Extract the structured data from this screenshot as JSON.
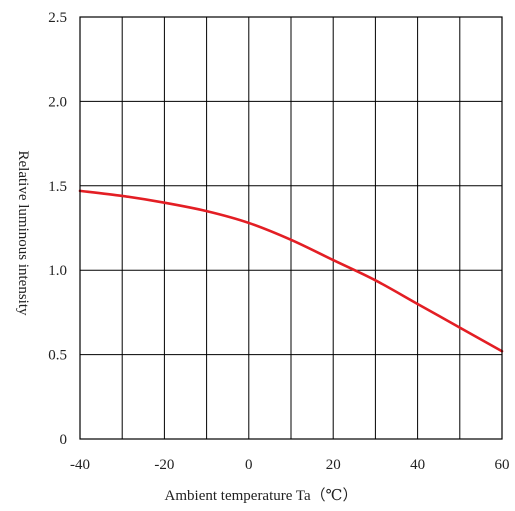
{
  "chart_data": {
    "type": "line",
    "title": "",
    "xlabel": "Ambient temperature Ta（℃）",
    "ylabel": "Relative luminous intensity",
    "xlim": [
      -40,
      60
    ],
    "ylim": [
      0,
      2.5
    ],
    "x_ticks": [
      -40,
      -30,
      -20,
      -10,
      0,
      10,
      20,
      30,
      40,
      50,
      60
    ],
    "x_tick_labels": [
      "-40",
      "",
      "-20",
      "",
      "0",
      "",
      "20",
      "",
      "40",
      "",
      "60"
    ],
    "y_ticks": [
      0,
      0.5,
      1.0,
      1.5,
      2.0,
      2.5
    ],
    "y_tick_labels": [
      "0",
      "0.5",
      "1.0",
      "1.5",
      "2.0",
      "2.5"
    ],
    "grid": true,
    "colors": {
      "line": "#e31e24",
      "grid": "#000000",
      "frame": "#000000"
    },
    "series": [
      {
        "x": [
          -40,
          -30,
          -20,
          -10,
          0,
          10,
          20,
          30,
          40,
          50,
          60
        ],
        "y": [
          1.47,
          1.44,
          1.4,
          1.35,
          1.28,
          1.18,
          1.06,
          0.94,
          0.8,
          0.66,
          0.52
        ]
      }
    ]
  }
}
